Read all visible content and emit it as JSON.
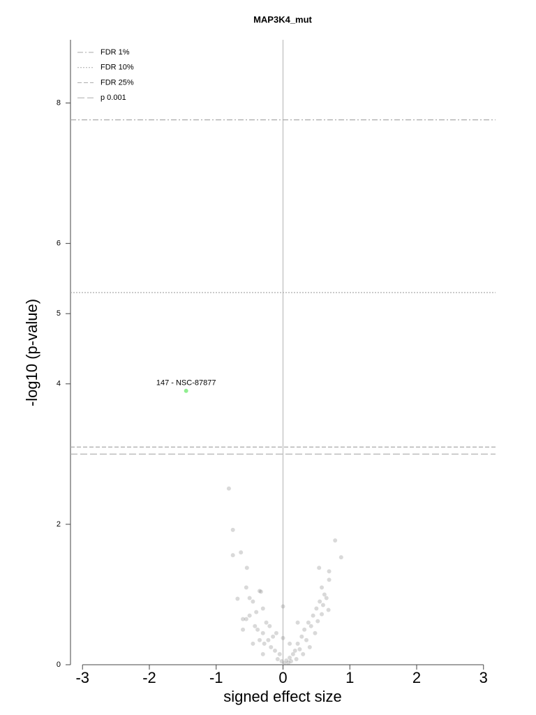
{
  "chart_data": {
    "type": "scatter",
    "title": "MAP3K4_mut",
    "xlabel": "signed effect size",
    "ylabel": "-log10 (p-value)",
    "xlim": [
      -3.18,
      3.18
    ],
    "ylim": [
      0,
      8.9
    ],
    "xticks": [
      -3,
      -2,
      -1,
      0,
      1,
      2,
      3
    ],
    "yticks": [
      0,
      2,
      4,
      5,
      6,
      8
    ],
    "vline": 0,
    "vline_color": "#c8c8c8",
    "hlines": [
      {
        "name": "FDR 1%",
        "value": 7.76,
        "dash": "dashdot",
        "color": "#aaaaaa"
      },
      {
        "name": "FDR 10%",
        "value": 5.3,
        "dash": "dotted",
        "color": "#aaaaaa"
      },
      {
        "name": "FDR 25%",
        "value": 3.1,
        "dash": "dashed",
        "color": "#aaaaaa"
      },
      {
        "name": "p 0.001",
        "value": 3.0,
        "dash": "longdash",
        "color": "#aaaaaa"
      }
    ],
    "legend": "upper left",
    "series": [
      {
        "color": "#808080",
        "opacity": 0.3,
        "x": [
          -0.81,
          -0.75,
          -0.75,
          -0.63,
          -0.54,
          -0.68,
          0.78,
          0.87,
          0.54,
          0.69,
          0.69,
          0.0,
          -0.55,
          -0.5,
          -0.35,
          -0.33,
          -0.45,
          -0.6,
          -0.55,
          -0.5,
          -0.4,
          -0.3,
          -0.42,
          -0.38,
          -0.3,
          -0.25,
          -0.2,
          -0.35,
          -0.28,
          -0.22,
          -0.18,
          -0.12,
          -0.1,
          -0.05,
          -0.08,
          -0.02,
          -0.3,
          -0.45,
          -0.15,
          -0.6,
          0.02,
          0.05,
          0.08,
          0.1,
          0.12,
          0.15,
          0.18,
          0.2,
          0.22,
          0.25,
          0.28,
          0.3,
          0.32,
          0.35,
          0.38,
          0.4,
          0.42,
          0.45,
          0.48,
          0.5,
          0.52,
          0.55,
          0.58,
          0.6,
          0.62,
          0.58,
          0.65,
          0.68,
          0.22,
          0.1,
          0.0
        ],
        "values": [
          2.51,
          1.92,
          1.56,
          1.6,
          1.38,
          0.94,
          1.77,
          1.53,
          1.38,
          1.33,
          1.21,
          0.83,
          1.1,
          0.95,
          1.05,
          1.04,
          0.9,
          0.65,
          0.65,
          0.7,
          0.75,
          0.8,
          0.55,
          0.5,
          0.45,
          0.6,
          0.55,
          0.35,
          0.3,
          0.35,
          0.25,
          0.2,
          0.45,
          0.15,
          0.08,
          0.05,
          0.15,
          0.3,
          0.4,
          0.5,
          0.02,
          0.06,
          0.03,
          0.1,
          0.05,
          0.15,
          0.2,
          0.08,
          0.3,
          0.22,
          0.4,
          0.15,
          0.5,
          0.35,
          0.6,
          0.25,
          0.55,
          0.7,
          0.45,
          0.8,
          0.62,
          0.9,
          0.72,
          0.85,
          1.0,
          1.1,
          0.95,
          0.78,
          0.6,
          0.3,
          0.38
        ]
      },
      {
        "color": "#90ee90",
        "opacity": 1,
        "x": [
          -1.45
        ],
        "values": [
          3.9
        ],
        "labels": [
          "147 - NSC-87877"
        ]
      }
    ]
  }
}
